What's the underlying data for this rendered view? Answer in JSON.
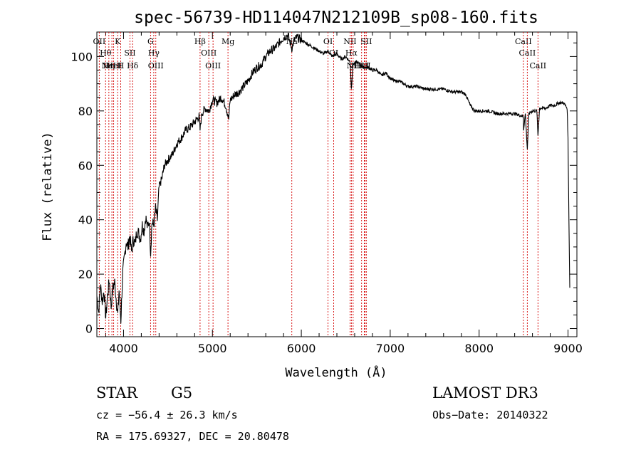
{
  "chart_data": {
    "type": "line",
    "title": "spec-56739-HD114047N212109B_sp08-160.fits",
    "xlabel": "Wavelength (Å)",
    "ylabel": "Flux (relative)",
    "xlim": [
      3700,
      9100
    ],
    "ylim": [
      -3,
      109
    ],
    "xticks": [
      4000,
      5000,
      6000,
      7000,
      8000,
      9000
    ],
    "yticks": [
      0,
      20,
      40,
      60,
      80,
      100
    ],
    "grid": false,
    "series": [
      {
        "values": [
          [
            3700,
            12
          ],
          [
            3720,
            6
          ],
          [
            3740,
            16
          ],
          [
            3760,
            10
          ],
          [
            3780,
            14
          ],
          [
            3800,
            4
          ],
          [
            3820,
            12
          ],
          [
            3840,
            18
          ],
          [
            3860,
            8
          ],
          [
            3880,
            15
          ],
          [
            3900,
            17
          ],
          [
            3920,
            10
          ],
          [
            3935,
            5
          ],
          [
            3950,
            14
          ],
          [
            3970,
            3
          ],
          [
            3990,
            20
          ],
          [
            4010,
            26
          ],
          [
            4030,
            32
          ],
          [
            4050,
            30
          ],
          [
            4070,
            34
          ],
          [
            4090,
            28
          ],
          [
            4110,
            33
          ],
          [
            4130,
            31
          ],
          [
            4150,
            36
          ],
          [
            4170,
            35
          ],
          [
            4190,
            33
          ],
          [
            4210,
            38
          ],
          [
            4230,
            36
          ],
          [
            4250,
            41
          ],
          [
            4270,
            37
          ],
          [
            4290,
            40
          ],
          [
            4305,
            28
          ],
          [
            4320,
            39
          ],
          [
            4340,
            38
          ],
          [
            4360,
            44
          ],
          [
            4380,
            40
          ],
          [
            4400,
            52
          ],
          [
            4430,
            55
          ],
          [
            4460,
            60
          ],
          [
            4500,
            62
          ],
          [
            4550,
            64
          ],
          [
            4600,
            68
          ],
          [
            4650,
            70
          ],
          [
            4700,
            73
          ],
          [
            4750,
            74
          ],
          [
            4800,
            76
          ],
          [
            4850,
            78
          ],
          [
            4861,
            73
          ],
          [
            4880,
            79
          ],
          [
            4920,
            81
          ],
          [
            4960,
            80
          ],
          [
            5000,
            84
          ],
          [
            5050,
            83
          ],
          [
            5100,
            85
          ],
          [
            5150,
            82
          ],
          [
            5183,
            77
          ],
          [
            5200,
            84
          ],
          [
            5250,
            86
          ],
          [
            5300,
            87
          ],
          [
            5350,
            89
          ],
          [
            5400,
            91
          ],
          [
            5450,
            94
          ],
          [
            5500,
            96
          ],
          [
            5550,
            97
          ],
          [
            5600,
            100
          ],
          [
            5650,
            102
          ],
          [
            5700,
            103
          ],
          [
            5750,
            105
          ],
          [
            5800,
            107
          ],
          [
            5850,
            108
          ],
          [
            5893,
            103
          ],
          [
            5920,
            106
          ],
          [
            5950,
            107
          ],
          [
            6000,
            106
          ],
          [
            6050,
            105
          ],
          [
            6100,
            104
          ],
          [
            6150,
            103
          ],
          [
            6200,
            102
          ],
          [
            6250,
            101
          ],
          [
            6300,
            102
          ],
          [
            6350,
            100
          ],
          [
            6400,
            101
          ],
          [
            6450,
            99
          ],
          [
            6500,
            100
          ],
          [
            6550,
            98
          ],
          [
            6563,
            88
          ],
          [
            6580,
            97
          ],
          [
            6620,
            98
          ],
          [
            6660,
            97
          ],
          [
            6700,
            96
          ],
          [
            6750,
            96
          ],
          [
            6800,
            95
          ],
          [
            6850,
            95
          ],
          [
            6900,
            93
          ],
          [
            6950,
            94
          ],
          [
            7000,
            92
          ],
          [
            7050,
            91
          ],
          [
            7100,
            91
          ],
          [
            7150,
            90
          ],
          [
            7200,
            89
          ],
          [
            7300,
            89
          ],
          [
            7400,
            88
          ],
          [
            7500,
            88
          ],
          [
            7600,
            88
          ],
          [
            7700,
            87
          ],
          [
            7800,
            87
          ],
          [
            7850,
            86
          ],
          [
            7900,
            82
          ],
          [
            7950,
            80
          ],
          [
            8000,
            80
          ],
          [
            8100,
            80
          ],
          [
            8200,
            79
          ],
          [
            8300,
            79
          ],
          [
            8400,
            79
          ],
          [
            8498,
            78
          ],
          [
            8500,
            73
          ],
          [
            8520,
            79
          ],
          [
            8542,
            66
          ],
          [
            8560,
            79
          ],
          [
            8600,
            80
          ],
          [
            8650,
            80
          ],
          [
            8662,
            71
          ],
          [
            8680,
            81
          ],
          [
            8750,
            81
          ],
          [
            8800,
            82
          ],
          [
            8850,
            82
          ],
          [
            8900,
            83
          ],
          [
            8950,
            83
          ],
          [
            8990,
            81
          ],
          [
            9000,
            70
          ],
          [
            9010,
            40
          ],
          [
            9020,
            15
          ]
        ]
      }
    ],
    "lines": [
      {
        "wl": 3727,
        "labels": [
          "OII"
        ]
      },
      {
        "wl": 3798,
        "labels": [
          "Hθ"
        ]
      },
      {
        "wl": 3835,
        "labels": [
          "Hη"
        ]
      },
      {
        "wl": 3869,
        "labels": [
          "NeIII"
        ]
      },
      {
        "wl": 3889,
        "labels": [
          "HeI"
        ]
      },
      {
        "wl": 3934,
        "labels": [
          "K"
        ]
      },
      {
        "wl": 3968,
        "labels": [
          "H"
        ]
      },
      {
        "wl": 4072,
        "labels": [
          "SII"
        ]
      },
      {
        "wl": 4102,
        "labels": [
          "Hδ"
        ]
      },
      {
        "wl": 4304,
        "labels": [
          "G"
        ]
      },
      {
        "wl": 4340,
        "labels": [
          "Hγ"
        ]
      },
      {
        "wl": 4363,
        "labels": [
          "OIII"
        ]
      },
      {
        "wl": 4861,
        "labels": [
          "Hβ"
        ]
      },
      {
        "wl": 4959,
        "labels": [
          "OIII"
        ]
      },
      {
        "wl": 5007,
        "labels": [
          "OIII"
        ]
      },
      {
        "wl": 5175,
        "labels": [
          "Mg"
        ]
      },
      {
        "wl": 5893,
        "labels": [
          "Na"
        ]
      },
      {
        "wl": 6300,
        "labels": [
          "OI"
        ]
      },
      {
        "wl": 6364,
        "labels": [
          "OI"
        ]
      },
      {
        "wl": 6548,
        "labels": [
          "NII"
        ]
      },
      {
        "wl": 6563,
        "labels": [
          "Hα"
        ]
      },
      {
        "wl": 6583,
        "labels": [
          "NII"
        ]
      },
      {
        "wl": 6678,
        "labels": [
          "HeI"
        ]
      },
      {
        "wl": 6708,
        "labels": [
          "Li"
        ]
      },
      {
        "wl": 6716,
        "labels": [
          "SII"
        ]
      },
      {
        "wl": 6731,
        "labels": [
          "SII"
        ]
      },
      {
        "wl": 8498,
        "labels": [
          "CaII"
        ]
      },
      {
        "wl": 8542,
        "labels": [
          "CaII"
        ]
      },
      {
        "wl": 8662,
        "labels": [
          "CaII"
        ]
      }
    ],
    "colors": {
      "spectrum": "#000000",
      "line_markers": "#d40000"
    }
  },
  "info": {
    "class": "STAR",
    "subclass": "G5",
    "survey": "LAMOST DR3",
    "cz": "cz = −56.4 ± 26.3 km/s",
    "obs_date": "Obs−Date: 20140322",
    "radec": "RA = 175.69327, DEC =  20.80478"
  }
}
